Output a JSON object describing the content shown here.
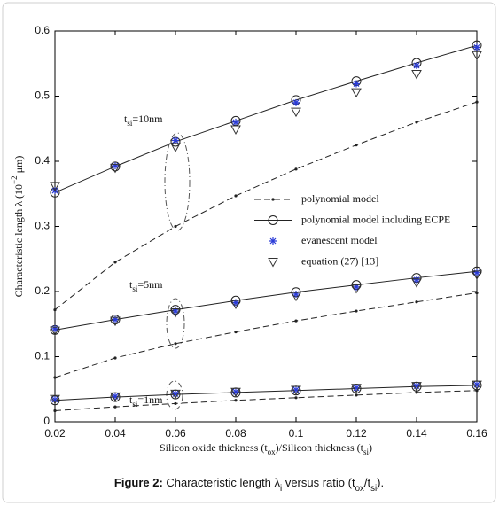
{
  "chart_data": {
    "type": "line",
    "xlabel": [
      {
        "text": "Silicon oxide thickness (t"
      },
      {
        "sub": "ox"
      },
      {
        "text": ")/Silicon thickness (t"
      },
      {
        "sub": "si"
      },
      {
        "text": ")"
      }
    ],
    "ylabel": [
      {
        "text": "Characteristic length λ (10"
      },
      {
        "sup": "−2"
      },
      {
        "text": " μm)"
      }
    ],
    "caption": [
      {
        "bold": "Figure 2:"
      },
      {
        "text": " Characteristic length λ"
      },
      {
        "sub": "i"
      },
      {
        "text": " versus ratio (t"
      },
      {
        "sub": "ox"
      },
      {
        "text": "/t"
      },
      {
        "sub": "si"
      },
      {
        "text": ")."
      }
    ],
    "groups": [
      [
        {
          "text": "t"
        },
        {
          "sub": "si"
        },
        {
          "text": "=10nm"
        }
      ],
      [
        {
          "text": "t"
        },
        {
          "sub": "si"
        },
        {
          "text": "=5nm"
        }
      ],
      [
        {
          "text": "t"
        },
        {
          "sub": "si"
        },
        {
          "text": "=1nm"
        }
      ]
    ],
    "x": [
      0.02,
      0.04,
      0.06,
      0.08,
      0.1,
      0.12,
      0.14,
      0.16
    ],
    "xlim": [
      0.02,
      0.16
    ],
    "xticks": [
      0.02,
      0.04,
      0.06,
      0.08,
      0.1,
      0.12,
      0.14,
      0.16
    ],
    "ylim": [
      0,
      0.6
    ],
    "yticks": [
      0,
      0.1,
      0.2,
      0.3,
      0.4,
      0.5,
      0.6
    ],
    "series": [
      {
        "name": "polynomial model",
        "color": "#222222",
        "line": "dashed",
        "marker": "dot",
        "values": [
          [
            0.172,
            0.245,
            0.3,
            0.347,
            0.388,
            0.425,
            0.46,
            0.491
          ],
          [
            0.068,
            0.098,
            0.12,
            0.138,
            0.155,
            0.17,
            0.184,
            0.198
          ],
          [
            0.017,
            0.023,
            0.028,
            0.033,
            0.037,
            0.041,
            0.045,
            0.048
          ]
        ]
      },
      {
        "name": "polynomial model including ECPE",
        "color": "#222222",
        "line": "solid",
        "marker": "circle",
        "values": [
          [
            0.352,
            0.392,
            0.43,
            0.462,
            0.494,
            0.523,
            0.551,
            0.578
          ],
          [
            0.141,
            0.157,
            0.172,
            0.186,
            0.199,
            0.21,
            0.221,
            0.231
          ],
          [
            0.033,
            0.038,
            0.042,
            0.045,
            0.048,
            0.051,
            0.054,
            0.056
          ]
        ]
      },
      {
        "name": "evanescent model",
        "color": "#2a3bd8",
        "line": null,
        "marker": "asterisk",
        "values": [
          [
            0.355,
            0.393,
            0.432,
            0.46,
            0.49,
            0.519,
            0.547,
            0.575
          ],
          [
            0.143,
            0.157,
            0.17,
            0.183,
            0.196,
            0.207,
            0.218,
            0.229
          ],
          [
            0.034,
            0.039,
            0.043,
            0.046,
            0.049,
            0.052,
            0.055,
            0.057
          ]
        ]
      },
      {
        "name": "equation (27) [13]",
        "color": "#333333",
        "line": null,
        "marker": "triangle",
        "values": [
          [
            0.362,
            0.39,
            0.422,
            0.449,
            0.476,
            0.506,
            0.534,
            0.563
          ],
          [
            0.14,
            0.155,
            0.168,
            0.181,
            0.193,
            0.205,
            0.214,
            0.226
          ],
          [
            0.035,
            0.039,
            0.043,
            0.046,
            0.049,
            0.052,
            0.055,
            0.057
          ]
        ]
      }
    ]
  }
}
